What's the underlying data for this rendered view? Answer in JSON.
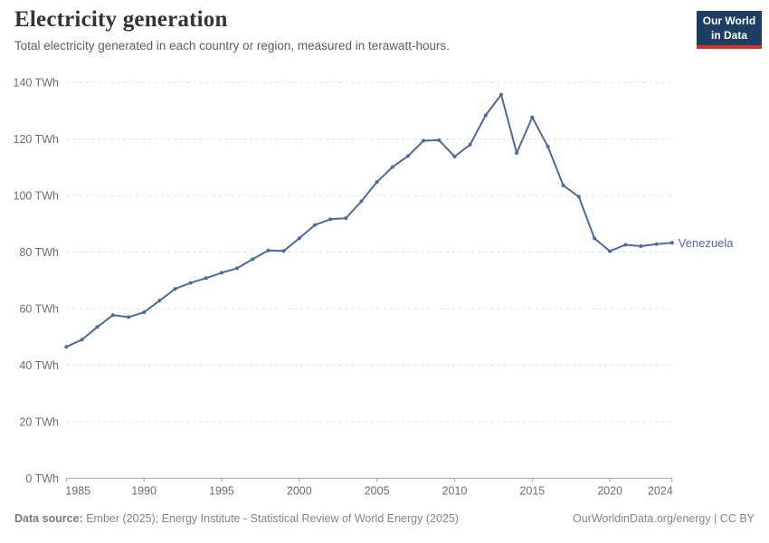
{
  "header": {
    "title": "Electricity generation",
    "subtitle": "Total electricity generated in each country or region, measured in terawatt-hours."
  },
  "logo": {
    "line1": "Our World",
    "line2": "in Data",
    "bg_color": "#1d3d63",
    "bar_color": "#d1352b"
  },
  "chart_data": {
    "type": "line",
    "title": "Electricity generation",
    "ylabel": "",
    "xlabel": "",
    "unit": "TWh",
    "grid": "horizontal-dashed",
    "legend_position": "end-of-line-label",
    "xlim": [
      1985,
      2024
    ],
    "ylim": [
      0,
      140
    ],
    "x": [
      1985,
      1986,
      1987,
      1988,
      1989,
      1990,
      1991,
      1992,
      1993,
      1994,
      1995,
      1996,
      1997,
      1998,
      1999,
      2000,
      2001,
      2002,
      2003,
      2004,
      2005,
      2006,
      2007,
      2008,
      2009,
      2010,
      2011,
      2012,
      2013,
      2014,
      2015,
      2016,
      2017,
      2018,
      2019,
      2020,
      2021,
      2022,
      2023,
      2024
    ],
    "series": [
      {
        "name": "Venezuela",
        "color": "#4C6A9C",
        "values": [
          46.5,
          49.0,
          53.5,
          57.7,
          57.0,
          58.7,
          62.8,
          67.0,
          69.1,
          70.8,
          72.7,
          74.3,
          77.5,
          80.6,
          80.4,
          84.9,
          89.6,
          91.6,
          92.0,
          98.0,
          104.8,
          110.1,
          114.0,
          119.4,
          119.6,
          113.8,
          118.0,
          128.4,
          135.7,
          115.1,
          127.7,
          117.4,
          103.6,
          99.6,
          84.9,
          80.3,
          82.6,
          82.1,
          82.8,
          83.3
        ]
      }
    ],
    "yticks": [
      0,
      20,
      40,
      60,
      80,
      100,
      120,
      140
    ],
    "ytick_labels": [
      "0 TWh",
      "20 TWh",
      "40 TWh",
      "60 TWh",
      "80 TWh",
      "100 TWh",
      "120 TWh",
      "140 TWh"
    ],
    "xticks": [
      1985,
      1990,
      1995,
      2000,
      2005,
      2010,
      2015,
      2020,
      2024
    ],
    "xtick_labels": [
      "1985",
      "1990",
      "1995",
      "2000",
      "2005",
      "2010",
      "2015",
      "2020",
      "2024"
    ]
  },
  "colors": {
    "line": "#4C6A9C",
    "gridline": "#dddddd",
    "axis": "#a1a1a1",
    "tick_label": "#6e6e6e"
  },
  "footer": {
    "source_label": "Data source:",
    "source_text": " Ember (2025); Energy Institute - Statistical Review of World Energy (2025)",
    "right_text": "OurWorldinData.org/energy | CC BY"
  }
}
